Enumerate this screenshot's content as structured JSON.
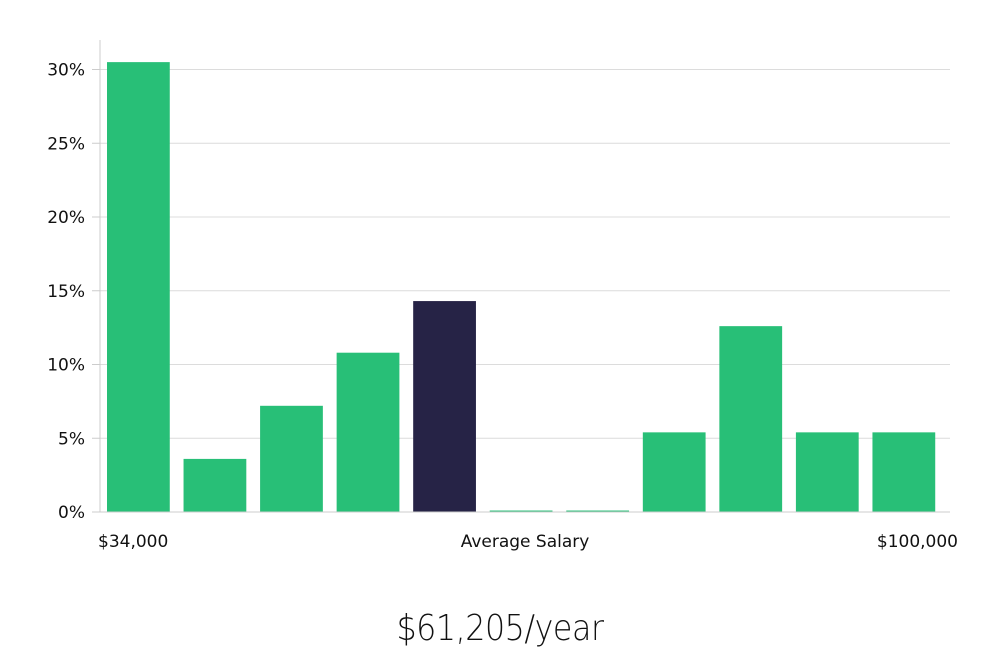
{
  "chart_data": {
    "type": "bar",
    "y_format": "percent",
    "ylim": [
      0,
      32
    ],
    "y_ticks": [
      0,
      5,
      10,
      15,
      20,
      25,
      30
    ],
    "y_tick_labels": [
      "0%",
      "5%",
      "10%",
      "15%",
      "20%",
      "25%",
      "30%"
    ],
    "grid": true,
    "x_labels": {
      "left": "$34,000",
      "center": "Average Salary",
      "right": "$100,000"
    },
    "values": [
      30.5,
      3.6,
      7.2,
      10.8,
      14.3,
      0.1,
      0.1,
      5.4,
      12.6,
      5.4,
      5.4
    ],
    "highlight_index": 4
  },
  "colors": {
    "bar": "#28bf77",
    "highlight": "#262346",
    "grid": "#dcdcdc",
    "axis": "#cccccc"
  },
  "footer": {
    "average_salary": "$61,205/year"
  }
}
